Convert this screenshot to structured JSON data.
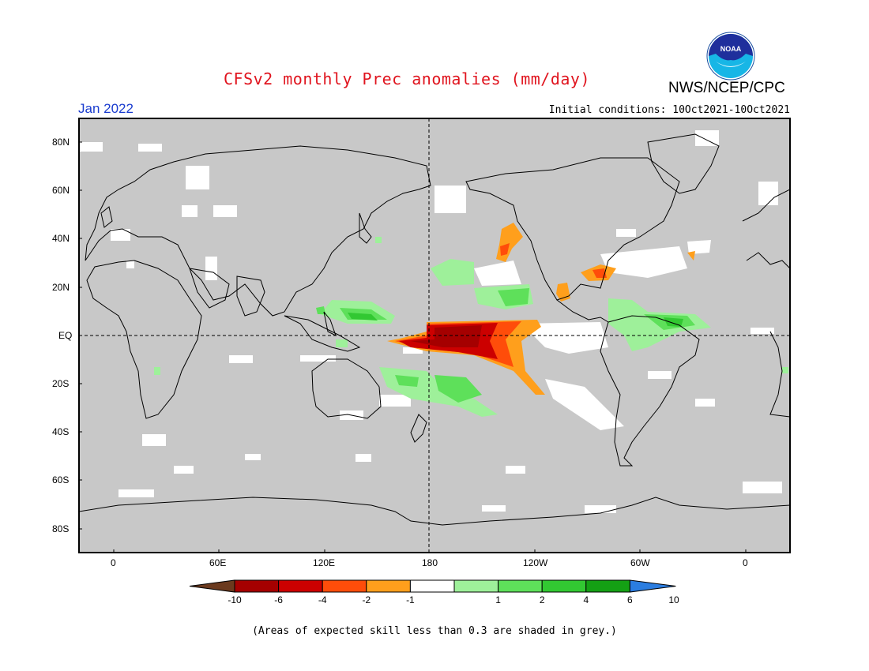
{
  "title": "CFSv2 monthly Prec anomalies (mm/day)",
  "agency": "NWS/NCEP/CPC",
  "logo_text": "NOAA",
  "month_label": "Jan 2022",
  "initial_conditions": "Initial conditions: 10Oct2021-10Oct2021",
  "footnote": "(Areas of expected skill less than 0.3 are shaded in grey.)",
  "map": {
    "projection": "cylindrical equidistant",
    "lon_range": [
      -20,
      380
    ],
    "lat_range": [
      -90,
      90
    ],
    "lat_ticks": [
      "80N",
      "60N",
      "40N",
      "20N",
      "EQ",
      "20S",
      "40S",
      "60S",
      "80S"
    ],
    "lon_ticks": [
      "0",
      "60E",
      "120E",
      "180",
      "120W",
      "60W",
      "0"
    ],
    "background_color": "#c8c8c8",
    "reference_lines": [
      "equator",
      "dateline"
    ]
  },
  "colorbar": {
    "colors": [
      "#6b3a1e",
      "#a50000",
      "#cc0000",
      "#ff4d0a",
      "#ff9f1c",
      "#ffffff",
      "#9ef09a",
      "#5ee05a",
      "#32c832",
      "#14a014",
      "#2b7de0"
    ],
    "labels": [
      "-10",
      "-6",
      "-4",
      "-2",
      "-1",
      "1",
      "2",
      "4",
      "6",
      "10"
    ]
  }
}
